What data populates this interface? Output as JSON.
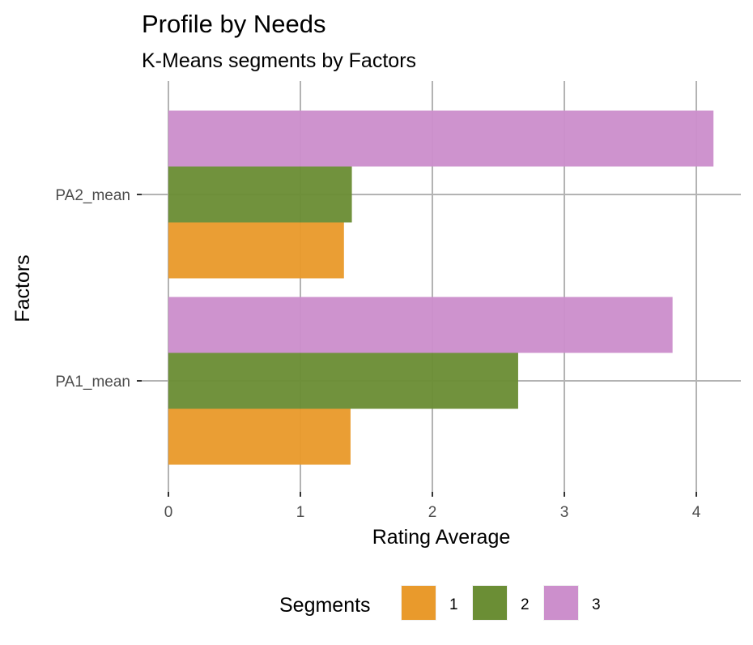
{
  "chart_data": {
    "type": "bar",
    "orientation": "horizontal",
    "title": "Profile by Needs",
    "subtitle": "K-Means segments by Factors",
    "xlabel": "Rating Average",
    "ylabel": "Factors",
    "xlim": [
      0,
      4.3
    ],
    "x_ticks": [
      0,
      1,
      2,
      3,
      4
    ],
    "x_tick_labels": [
      "0",
      "1",
      "2",
      "3",
      "4"
    ],
    "categories": [
      "PA1_mean",
      "PA2_mean"
    ],
    "legend": {
      "title": "Segments",
      "position": "bottom"
    },
    "series": [
      {
        "name": "1",
        "color": "#e99a2c",
        "values": [
          1.38,
          1.33
        ]
      },
      {
        "name": "2",
        "color": "#6b8e35",
        "values": [
          2.65,
          1.39
        ]
      },
      {
        "name": "3",
        "color": "#cc8fcc",
        "values": [
          3.82,
          4.13
        ]
      }
    ],
    "grid": true
  }
}
